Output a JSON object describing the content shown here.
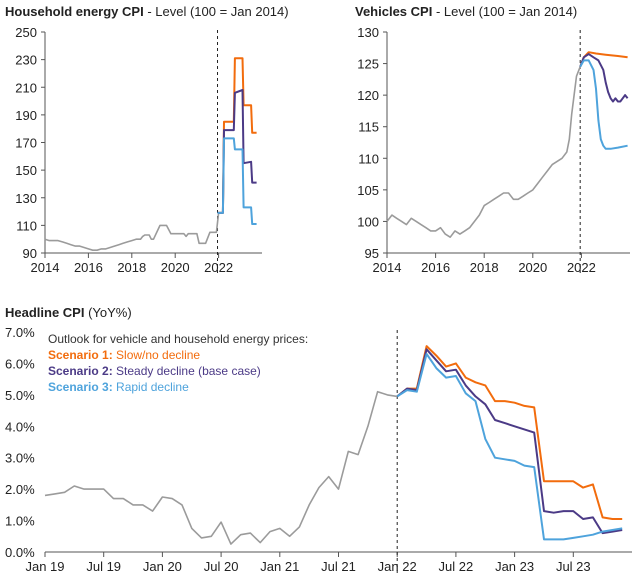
{
  "colors": {
    "grey": "#9b9b9b",
    "scenario1": "#f26c0d",
    "scenario2": "#4b3a86",
    "scenario3": "#4ea3dc",
    "axis": "#555555"
  },
  "chart_data": [
    {
      "id": "household",
      "type": "line",
      "title_bold": "Household energy CPI",
      "title_rest": " - Level (100 = Jan 2014)",
      "ylim": [
        90,
        250
      ],
      "yticks": [
        90,
        110,
        130,
        150,
        170,
        190,
        210,
        230,
        250
      ],
      "xlim": [
        2014,
        2024
      ],
      "xticks": [
        2014,
        2016,
        2018,
        2020,
        2022
      ],
      "xtick_labels": [
        "2014",
        "2016",
        "2018",
        "2020",
        "2022"
      ],
      "divider_x": 2021.95,
      "series": [
        {
          "key": "history",
          "color_key": "grey",
          "x": [
            2014.0,
            2014.2,
            2014.4,
            2014.6,
            2014.8,
            2015.0,
            2015.2,
            2015.4,
            2015.6,
            2015.8,
            2016.0,
            2016.2,
            2016.4,
            2016.6,
            2016.8,
            2017.0,
            2017.2,
            2017.4,
            2017.6,
            2017.8,
            2018.0,
            2018.2,
            2018.4,
            2018.5,
            2018.6,
            2018.8,
            2018.9,
            2019.0,
            2019.3,
            2019.5,
            2019.6,
            2019.8,
            2020.0,
            2020.2,
            2020.4,
            2020.5,
            2020.6,
            2020.8,
            2021.0,
            2021.1,
            2021.3,
            2021.4,
            2021.6,
            2021.8,
            2021.9,
            2022.0
          ],
          "y": [
            100,
            99,
            99,
            99,
            98,
            97,
            96,
            95,
            95,
            94,
            93,
            92,
            92,
            93,
            93,
            94,
            95,
            96,
            97,
            98,
            99,
            100,
            100,
            102,
            103,
            103,
            100,
            100,
            110,
            110,
            110,
            104,
            104,
            104,
            104,
            102,
            104,
            104,
            104,
            97,
            97,
            97,
            105,
            105,
            105,
            119
          ]
        },
        {
          "key": "scenario1",
          "color_key": "scenario1",
          "x": [
            2021.95,
            2022.2,
            2022.25,
            2022.7,
            2022.75,
            2023.1,
            2023.15,
            2023.5,
            2023.55,
            2023.75
          ],
          "y": [
            119,
            119,
            185,
            185,
            231,
            231,
            197,
            197,
            177,
            177
          ]
        },
        {
          "key": "scenario2",
          "color_key": "scenario2",
          "x": [
            2021.95,
            2022.2,
            2022.25,
            2022.7,
            2022.75,
            2023.1,
            2023.15,
            2023.5,
            2023.55,
            2023.75
          ],
          "y": [
            119,
            119,
            179,
            179,
            206,
            208,
            155,
            156,
            141,
            141
          ]
        },
        {
          "key": "scenario3",
          "color_key": "scenario3",
          "x": [
            2021.95,
            2022.2,
            2022.25,
            2022.7,
            2022.75,
            2023.1,
            2023.15,
            2023.5,
            2023.55,
            2023.75
          ],
          "y": [
            119,
            119,
            173,
            173,
            165,
            165,
            123,
            123,
            111,
            111
          ]
        }
      ]
    },
    {
      "id": "vehicles",
      "type": "line",
      "title_bold": "Vehicles CPI",
      "title_rest": " - Level (100 = Jan 2014)",
      "ylim": [
        95,
        130
      ],
      "yticks": [
        95,
        100,
        105,
        110,
        115,
        120,
        125,
        130
      ],
      "xlim": [
        2014,
        2024
      ],
      "xticks": [
        2014,
        2016,
        2018,
        2020,
        2022
      ],
      "xtick_labels": [
        "2014",
        "2016",
        "2018",
        "2020",
        "2022"
      ],
      "divider_x": 2021.95,
      "series": [
        {
          "key": "history",
          "color_key": "grey",
          "x": [
            2014.0,
            2014.2,
            2014.4,
            2014.6,
            2014.8,
            2015.0,
            2015.2,
            2015.4,
            2015.6,
            2015.8,
            2016.0,
            2016.2,
            2016.4,
            2016.6,
            2016.8,
            2017.0,
            2017.2,
            2017.4,
            2017.6,
            2017.8,
            2018.0,
            2018.2,
            2018.4,
            2018.6,
            2018.8,
            2019.0,
            2019.2,
            2019.4,
            2019.6,
            2019.8,
            2020.0,
            2020.2,
            2020.4,
            2020.6,
            2020.8,
            2021.0,
            2021.2,
            2021.4,
            2021.5,
            2021.6,
            2021.7,
            2021.8,
            2021.95
          ],
          "y": [
            100,
            101,
            100.5,
            100,
            99.5,
            100.5,
            100,
            99.5,
            99,
            98.5,
            98.5,
            99,
            98,
            97.5,
            98.5,
            98,
            98.5,
            99,
            100,
            101,
            102.5,
            103,
            103.5,
            104,
            104.5,
            104.5,
            103.5,
            103.5,
            104,
            104.5,
            105,
            106,
            107,
            108,
            109,
            109.5,
            110,
            111,
            113,
            117,
            120,
            123,
            124.5
          ]
        },
        {
          "key": "scenario1",
          "color_key": "scenario1",
          "x": [
            2021.95,
            2022.1,
            2022.3,
            2022.6,
            2023.0,
            2023.5,
            2023.9
          ],
          "y": [
            124.5,
            126,
            126.8,
            126.6,
            126.4,
            126.2,
            126
          ]
        },
        {
          "key": "scenario2",
          "color_key": "scenario2",
          "x": [
            2021.95,
            2022.1,
            2022.3,
            2022.5,
            2022.7,
            2022.9,
            2023.0,
            2023.1,
            2023.2,
            2023.3,
            2023.4,
            2023.5,
            2023.6,
            2023.7,
            2023.8,
            2023.9
          ],
          "y": [
            124.5,
            126,
            126.5,
            126,
            125.5,
            124,
            122,
            120.5,
            119.5,
            119,
            119.5,
            119,
            119,
            119.5,
            120,
            119.5
          ]
        },
        {
          "key": "scenario3",
          "color_key": "scenario3",
          "x": [
            2021.95,
            2022.1,
            2022.3,
            2022.5,
            2022.6,
            2022.7,
            2022.8,
            2022.9,
            2023.0,
            2023.2,
            2023.5,
            2023.9
          ],
          "y": [
            124.5,
            125.5,
            125.5,
            124,
            121,
            116,
            113,
            112,
            111.5,
            111.5,
            111.7,
            112
          ]
        }
      ]
    },
    {
      "id": "headline",
      "type": "line",
      "title_bold": "Headline CPI",
      "title_rest": " (YoY%)",
      "ylim": [
        0,
        7
      ],
      "yticks": [
        0,
        1,
        2,
        3,
        4,
        5,
        6,
        7
      ],
      "ytick_labels": [
        "0.0%",
        "1.0%",
        "2.0%",
        "3.0%",
        "4.0%",
        "5.0%",
        "6.0%",
        "7.0%"
      ],
      "xlim": [
        0,
        60
      ],
      "xticks": [
        0,
        6,
        12,
        18,
        24,
        30,
        36,
        42,
        48,
        54
      ],
      "xtick_labels": [
        "Jan 19",
        "Jul 19",
        "Jan 20",
        "Jul 20",
        "Jan 21",
        "Jul 21",
        "Jan 22",
        "Jul 22",
        "Jan 23",
        "Jul 23"
      ],
      "divider_x": 36,
      "legend_heading": "Outlook for vehicle and household energy prices:",
      "legend": [
        {
          "color_key": "scenario1",
          "bold": "Scenario 1: ",
          "text": "Slow/no decline"
        },
        {
          "color_key": "scenario2",
          "bold": "Scenario 2: ",
          "text": "Steady decline (base case)"
        },
        {
          "color_key": "scenario3",
          "bold": "Scenario 3: ",
          "text": "Rapid decline"
        }
      ],
      "series": [
        {
          "key": "history",
          "color_key": "grey",
          "x": [
            0,
            1,
            2,
            3,
            4,
            5,
            6,
            7,
            8,
            9,
            10,
            11,
            12,
            13,
            14,
            15,
            16,
            17,
            18,
            19,
            20,
            21,
            22,
            23,
            24,
            25,
            26,
            27,
            28,
            29,
            30,
            31,
            32,
            33,
            34,
            35,
            36
          ],
          "y": [
            1.8,
            1.85,
            1.9,
            2.1,
            2.0,
            2.0,
            2.0,
            1.7,
            1.7,
            1.5,
            1.5,
            1.3,
            1.75,
            1.7,
            1.5,
            0.75,
            0.45,
            0.5,
            0.95,
            0.25,
            0.55,
            0.6,
            0.3,
            0.65,
            0.75,
            0.5,
            0.8,
            1.5,
            2.05,
            2.4,
            2.0,
            3.2,
            3.1,
            4.0,
            5.1,
            5.0,
            4.95
          ]
        },
        {
          "key": "scenario1",
          "color_key": "scenario1",
          "x": [
            36,
            37,
            38,
            39,
            40,
            41,
            42,
            43,
            44,
            45,
            46,
            47,
            48,
            49,
            50,
            51,
            52,
            53,
            54,
            55,
            56,
            57,
            58,
            59
          ],
          "y": [
            4.95,
            5.2,
            5.2,
            6.55,
            6.25,
            5.9,
            6.0,
            5.55,
            5.4,
            5.3,
            4.8,
            4.8,
            4.75,
            4.65,
            4.6,
            2.25,
            2.25,
            2.25,
            2.25,
            2.05,
            2.15,
            1.1,
            1.05,
            1.05
          ]
        },
        {
          "key": "scenario2",
          "color_key": "scenario2",
          "x": [
            36,
            37,
            38,
            39,
            40,
            41,
            42,
            43,
            44,
            45,
            46,
            47,
            48,
            49,
            50,
            51,
            52,
            53,
            54,
            55,
            56,
            57,
            58,
            59
          ],
          "y": [
            4.95,
            5.2,
            5.15,
            6.45,
            6.1,
            5.75,
            5.8,
            5.3,
            4.95,
            4.7,
            4.2,
            4.1,
            4.0,
            3.9,
            3.8,
            1.3,
            1.25,
            1.3,
            1.3,
            1.05,
            1.1,
            0.6,
            0.65,
            0.7
          ]
        },
        {
          "key": "scenario3",
          "color_key": "scenario3",
          "x": [
            36,
            37,
            38,
            39,
            40,
            41,
            42,
            43,
            44,
            45,
            46,
            47,
            48,
            49,
            50,
            51,
            52,
            53,
            54,
            55,
            56,
            57,
            58,
            59
          ],
          "y": [
            4.95,
            5.15,
            5.1,
            6.3,
            5.85,
            5.55,
            5.6,
            5.05,
            4.8,
            3.6,
            3.0,
            2.95,
            2.9,
            2.75,
            2.7,
            0.4,
            0.4,
            0.4,
            0.45,
            0.5,
            0.55,
            0.65,
            0.7,
            0.75
          ]
        }
      ]
    }
  ]
}
